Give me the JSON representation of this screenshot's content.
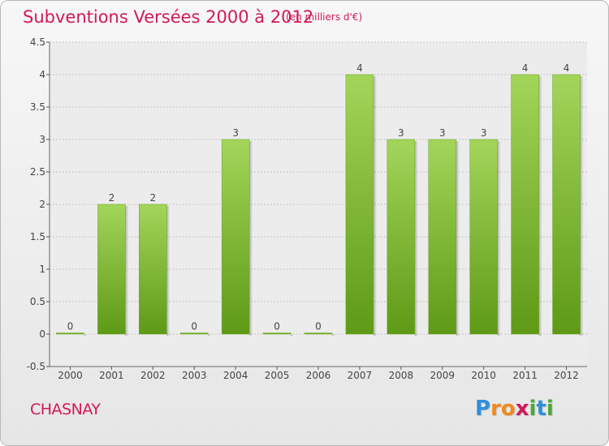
{
  "title": "Subventions Versées 2000 à 2012",
  "subtitle": "(en milliers d'€)",
  "place": "CHASNAY",
  "logo": {
    "letters": [
      {
        "char": "P",
        "color": "#2f8fd9"
      },
      {
        "char": "r",
        "color": "#f08a1c"
      },
      {
        "char": "o",
        "color": "#f08a1c"
      },
      {
        "char": "x",
        "color": "#d2185a"
      },
      {
        "char": "i",
        "color": "#49a83a"
      },
      {
        "char": "t",
        "color": "#2f8fd9"
      },
      {
        "char": "i",
        "color": "#49a83a"
      }
    ]
  },
  "colors": {
    "bar_top": "#a3d55a",
    "bar_bottom": "#5e9a16",
    "title": "#d2185a"
  },
  "chart_data": {
    "type": "bar",
    "categories": [
      "2000",
      "2001",
      "2002",
      "2003",
      "2004",
      "2005",
      "2006",
      "2007",
      "2008",
      "2009",
      "2010",
      "2011",
      "2012"
    ],
    "values": [
      0,
      2,
      2,
      0,
      3,
      0,
      0,
      4,
      3,
      3,
      3,
      4,
      4
    ],
    "data_labels": [
      "0",
      "2",
      "2",
      "0",
      "3",
      "0",
      "0",
      "4",
      "3",
      "3",
      "3",
      "4",
      "4"
    ],
    "title": "Subventions Versées 2000 à 2012",
    "subtitle": "(en milliers d'€)",
    "ylim": [
      -0.5,
      4.5
    ],
    "yticks": [
      -0.5,
      0,
      0.5,
      1,
      1.5,
      2,
      2.5,
      3,
      3.5,
      4,
      4.5
    ],
    "ytick_labels": [
      "-0.5",
      "0",
      "0.5",
      "1",
      "1.5",
      "2",
      "2.5",
      "3",
      "3.5",
      "4",
      "4.5"
    ],
    "grid": "horizontal"
  }
}
